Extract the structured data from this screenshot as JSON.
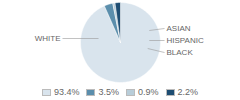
{
  "chart_data": {
    "type": "pie",
    "categories": [
      "WHITE",
      "ASIAN",
      "HISPANIC",
      "BLACK"
    ],
    "values": [
      93.4,
      3.5,
      0.9,
      2.2
    ],
    "value_labels": [
      "93.4%",
      "3.5%",
      "0.9%",
      "2.2%"
    ],
    "colors": [
      "#d9e4ed",
      "#5b8eac",
      "#b8cdd9",
      "#1e4d72"
    ],
    "legend": "bottom"
  }
}
